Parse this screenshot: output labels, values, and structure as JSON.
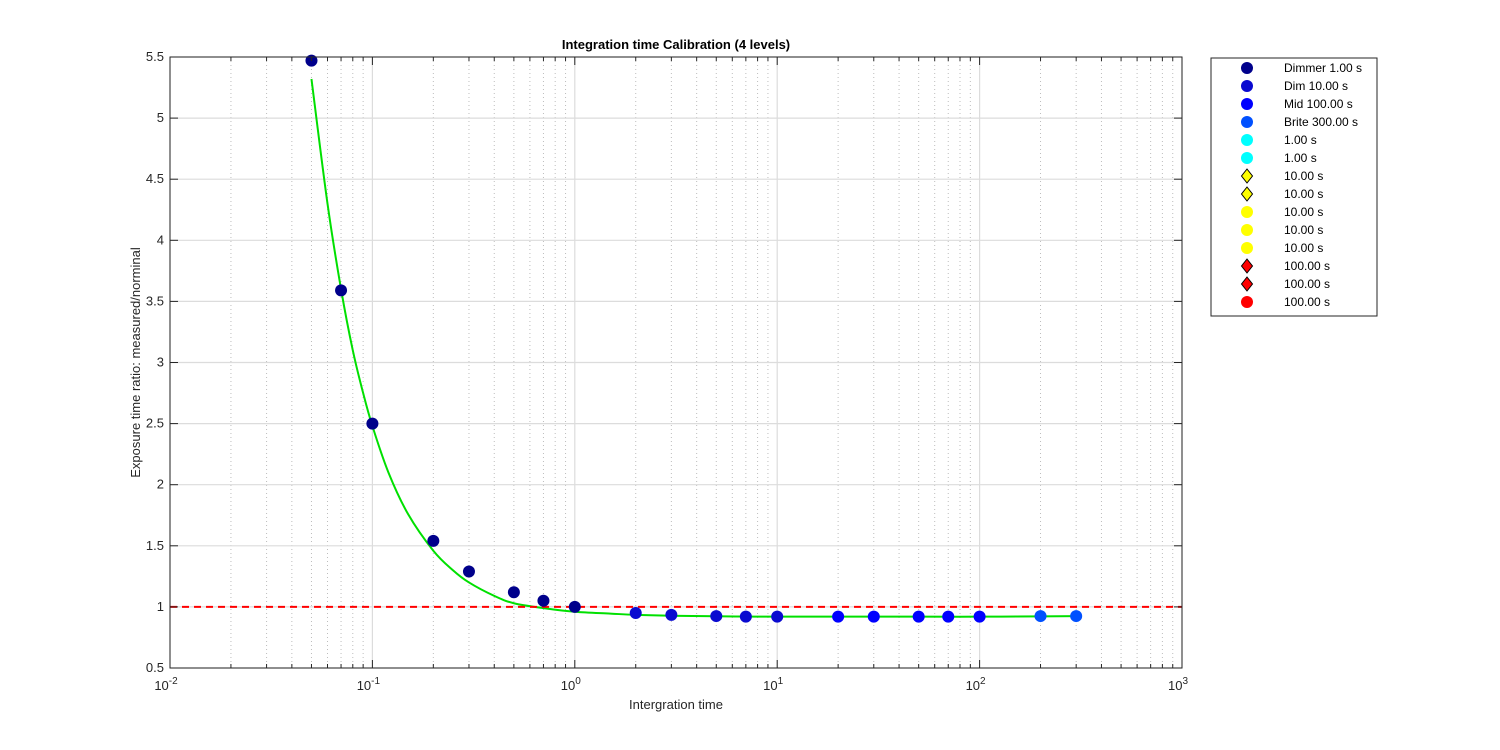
{
  "chart_data": {
    "type": "scatter",
    "title": "Integration time Calibration (4 levels)",
    "xlabel": "Intergration time",
    "ylabel": "Exposure time ratio: measured/norminal",
    "xscale": "log",
    "xlim": [
      0.01,
      1000
    ],
    "ylim": [
      0.5,
      5.5
    ],
    "x_ticks": [
      {
        "base": "10",
        "exp": "-2",
        "value": 0.01
      },
      {
        "base": "10",
        "exp": "-1",
        "value": 0.1
      },
      {
        "base": "10",
        "exp": "0",
        "value": 1
      },
      {
        "base": "10",
        "exp": "1",
        "value": 10
      },
      {
        "base": "10",
        "exp": "2",
        "value": 100
      },
      {
        "base": "10",
        "exp": "3",
        "value": 1000
      }
    ],
    "y_ticks": [
      "0.5",
      "1",
      "1.5",
      "2",
      "2.5",
      "3",
      "3.5",
      "4",
      "4.5",
      "5",
      "5.5"
    ],
    "grid": true,
    "legend_position": "outside-top-right",
    "points": [
      {
        "x": 0.05,
        "y": 5.47,
        "color": "#00008b"
      },
      {
        "x": 0.07,
        "y": 3.59,
        "color": "#00008b"
      },
      {
        "x": 0.1,
        "y": 2.5,
        "color": "#00008b"
      },
      {
        "x": 0.2,
        "y": 1.54,
        "color": "#00008b"
      },
      {
        "x": 0.3,
        "y": 1.29,
        "color": "#00008b"
      },
      {
        "x": 0.5,
        "y": 1.12,
        "color": "#00008b"
      },
      {
        "x": 0.7,
        "y": 1.05,
        "color": "#00008b"
      },
      {
        "x": 1,
        "y": 1.0,
        "color": "#00008b"
      },
      {
        "x": 2,
        "y": 0.95,
        "color": "#0a0ad0"
      },
      {
        "x": 3,
        "y": 0.935,
        "color": "#0a0ad0"
      },
      {
        "x": 5,
        "y": 0.925,
        "color": "#0a0ad0"
      },
      {
        "x": 7,
        "y": 0.92,
        "color": "#0a0ad0"
      },
      {
        "x": 10,
        "y": 0.92,
        "color": "#0a0ad0"
      },
      {
        "x": 20,
        "y": 0.92,
        "color": "#0000ff"
      },
      {
        "x": 30,
        "y": 0.92,
        "color": "#0000ff"
      },
      {
        "x": 50,
        "y": 0.92,
        "color": "#0000ff"
      },
      {
        "x": 70,
        "y": 0.92,
        "color": "#0000ff"
      },
      {
        "x": 100,
        "y": 0.92,
        "color": "#0000ff"
      },
      {
        "x": 200,
        "y": 0.925,
        "color": "#0050ff"
      },
      {
        "x": 300,
        "y": 0.925,
        "color": "#0050ff"
      }
    ],
    "fit_curve": {
      "color": "#00e000",
      "x": [
        0.05,
        0.06,
        0.07,
        0.08,
        0.09,
        0.1,
        0.12,
        0.15,
        0.2,
        0.25,
        0.3,
        0.4,
        0.5,
        0.7,
        1,
        1.5,
        2,
        3,
        5,
        7,
        10,
        20,
        50,
        100,
        200,
        300
      ],
      "y": [
        5.32,
        4.3,
        3.6,
        3.1,
        2.75,
        2.48,
        2.1,
        1.76,
        1.46,
        1.3,
        1.2,
        1.09,
        1.03,
        0.99,
        0.96,
        0.945,
        0.935,
        0.928,
        0.923,
        0.921,
        0.92,
        0.92,
        0.92,
        0.92,
        0.922,
        0.925
      ]
    },
    "reference_line": {
      "y": 1,
      "color": "#ff0000",
      "style": "dashed"
    },
    "legend": [
      {
        "label": "Dimmer 1.00 s",
        "marker": "circle",
        "color": "#00008b"
      },
      {
        "label": "Dim 10.00 s",
        "marker": "circle",
        "color": "#0a0ad0"
      },
      {
        "label": "Mid 100.00 s",
        "marker": "circle",
        "color": "#0000ff"
      },
      {
        "label": "Brite 300.00 s",
        "marker": "circle",
        "color": "#0050ff"
      },
      {
        "label": "1.00 s",
        "marker": "circle",
        "color": "#00ffff"
      },
      {
        "label": "1.00 s",
        "marker": "circle",
        "color": "#00ffff"
      },
      {
        "label": "10.00 s",
        "marker": "diamond",
        "color": "#ffff00"
      },
      {
        "label": "10.00 s",
        "marker": "diamond",
        "color": "#ffff00"
      },
      {
        "label": "10.00 s",
        "marker": "circle",
        "color": "#ffff00"
      },
      {
        "label": "10.00 s",
        "marker": "circle",
        "color": "#ffff00"
      },
      {
        "label": "10.00 s",
        "marker": "circle",
        "color": "#ffff00"
      },
      {
        "label": "100.00 s",
        "marker": "diamond",
        "color": "#ff0000"
      },
      {
        "label": "100.00 s",
        "marker": "diamond",
        "color": "#ff0000"
      },
      {
        "label": "100.00 s",
        "marker": "circle",
        "color": "#ff0000"
      }
    ]
  }
}
